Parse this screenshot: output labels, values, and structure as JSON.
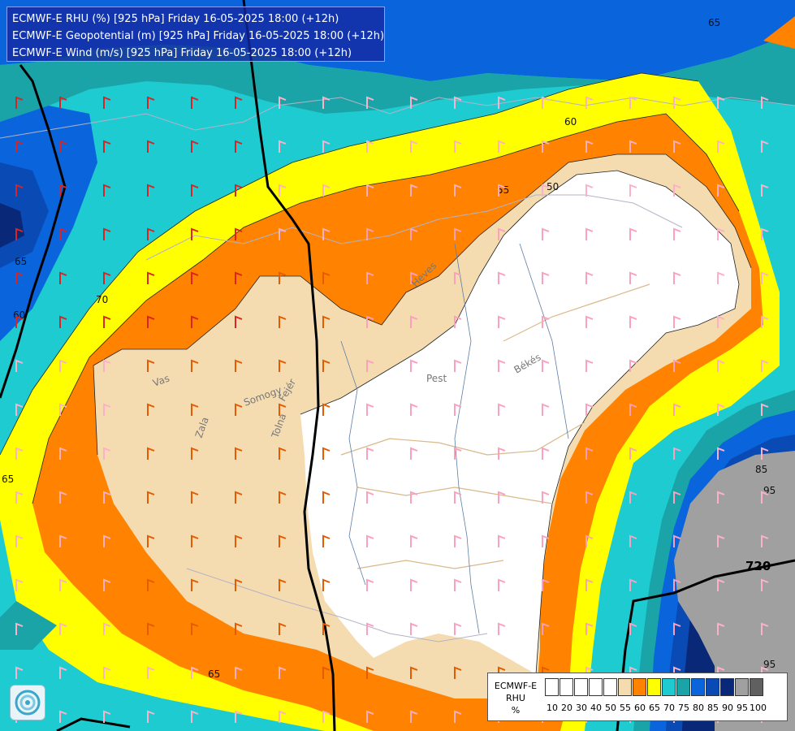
{
  "titles": [
    "ECMWF-E RHU (%) [925 hPa] Friday 16-05-2025 18:00 (+12h)",
    "ECMWF-E Geopotential (m) [925 hPa] Friday 16-05-2025 18:00 (+12h)",
    "ECMWF-E Wind (m/s) [925 hPa] Friday 16-05-2025 18:00 (+12h)"
  ],
  "legend": {
    "label_lines": [
      "ECMWF-E",
      "RHU",
      "%"
    ],
    "ticks": [
      "10",
      "20",
      "30",
      "40",
      "50",
      "55",
      "60",
      "65",
      "70",
      "75",
      "80",
      "85",
      "90",
      "95",
      "100"
    ],
    "colors": [
      "#ffffff",
      "#ffffff",
      "#ffffff",
      "#ffffff",
      "#ffffff",
      "#f5dcb0",
      "#ff8200",
      "#ffff00",
      "#1ecbd0",
      "#1ba4a8",
      "#0a64dc",
      "#0a4ab4",
      "#0a2878",
      "#a0a0a0",
      "#606060"
    ]
  },
  "contour_labels": {
    "c50": "50",
    "c55": "55",
    "c60": "60",
    "c65a": "65",
    "c65b": "65",
    "c65c": "65",
    "c65d": "65",
    "c70": "70",
    "c60b": "60",
    "c85a": "85",
    "c95a": "95",
    "c95b": "95",
    "geo720": "720"
  },
  "region_labels": {
    "pest": "Pest",
    "bekes": "Békés",
    "heves": "Heves",
    "somogy": "Somogy",
    "fejer": "Fejér",
    "tolna": "Tolna",
    "zala": "Zala",
    "vas": "Vas"
  },
  "colors": {
    "white": "#ffffff",
    "beige": "#f5dcb0",
    "orange": "#ff8200",
    "yellow": "#ffff00",
    "cyan": "#1ecbd0",
    "teal": "#1ba4a8",
    "blue": "#0a64dc",
    "navy": "#0a2878",
    "grey": "#a0a0a0",
    "darkblue": "#0a4ab4"
  }
}
